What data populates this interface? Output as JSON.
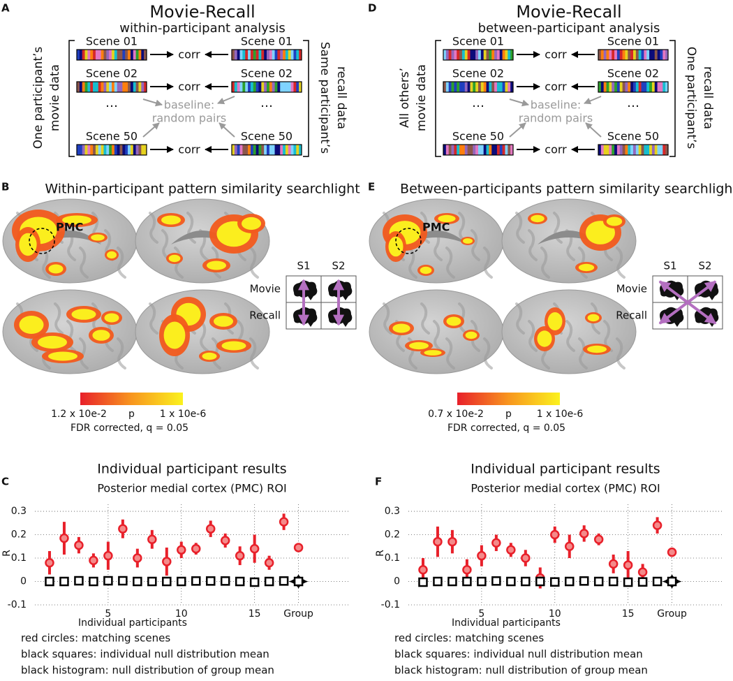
{
  "diagrams": [
    {
      "label": "A",
      "title": "Movie-Recall",
      "subtitle": "within-participant analysis",
      "left_caption": [
        "One participant’s",
        "movie data"
      ],
      "right_caption": [
        "Same participant’s",
        "recall data"
      ],
      "rows": [
        {
          "left": "Scene 01",
          "right": "Scene 01",
          "link": "corr"
        },
        {
          "left": "Scene 02",
          "right": "Scene 02",
          "link": "corr"
        },
        {
          "left": "…",
          "right": "…"
        },
        {
          "left": "Scene 50",
          "right": "Scene 50",
          "link": "corr"
        }
      ],
      "baseline": [
        "baseline:",
        "random pairs"
      ]
    },
    {
      "label": "D",
      "title": "Movie-Recall",
      "subtitle": "between-participant analysis",
      "left_caption": [
        "All others’",
        "movie data"
      ],
      "right_caption": [
        "One participant’s",
        "recall data"
      ],
      "rows": [
        {
          "left": "Scene 01",
          "right": "Scene 01",
          "link": "corr"
        },
        {
          "left": "Scene 02",
          "right": "Scene 02",
          "link": "corr"
        },
        {
          "left": "…",
          "right": "…"
        },
        {
          "left": "Scene 50",
          "right": "Scene 50",
          "link": "corr"
        }
      ],
      "baseline": [
        "baseline:",
        "random pairs"
      ]
    }
  ],
  "searchlights": [
    {
      "label": "B",
      "title": "Within-participant pattern similarity searchlight",
      "roi": "PMC",
      "matrix": {
        "columns": [
          "S1",
          "S2"
        ],
        "rows": [
          "Movie",
          "Recall"
        ],
        "arrows": "vertical"
      },
      "colorbar": {
        "min_label": "1.2 x 10e-2",
        "mid_label": "p",
        "max_label": "1 x 10e-6",
        "note": "FDR corrected, q = 0.05"
      }
    },
    {
      "label": "E",
      "title": "Between-participants pattern similarity searchlight",
      "roi": "PMC",
      "matrix": {
        "columns": [
          "S1",
          "S2"
        ],
        "rows": [
          "Movie",
          "Recall"
        ],
        "arrows": "crossed"
      },
      "colorbar": {
        "min_label": "0.7 x 10e-2",
        "mid_label": "p",
        "max_label": "1 x 10e-6",
        "note": "FDR corrected, q = 0.05"
      }
    }
  ],
  "chart_data": [
    {
      "type": "scatter",
      "label": "C",
      "title": "Individual participant results",
      "subtitle": "Posterior medial cortex (PMC) ROI",
      "ylabel": "R",
      "xlabel": "Individual participants",
      "notes": [
        "red circles: matching scenes",
        "black squares: individual null distribution mean",
        "black histogram: null distribution of group mean"
      ],
      "x": [
        1,
        2,
        3,
        4,
        5,
        6,
        7,
        8,
        9,
        10,
        11,
        12,
        13,
        14,
        15,
        16,
        17,
        18
      ],
      "xlim": [
        0,
        21.5
      ],
      "ylim": [
        -0.1,
        0.33
      ],
      "xticks": [
        5,
        10,
        15,
        {
          "value": 18,
          "label": "Group"
        }
      ],
      "yticks": [
        -0.1,
        0,
        0.1,
        0.2,
        0.3
      ],
      "grid": true,
      "series": [
        {
          "marker": "circle",
          "color": "#e8202a",
          "values": [
            0.08,
            0.185,
            0.155,
            0.09,
            0.11,
            0.225,
            0.1,
            0.18,
            0.085,
            0.135,
            0.14,
            0.225,
            0.175,
            0.11,
            0.14,
            0.08,
            0.255,
            0.145
          ],
          "errors": [
            0.05,
            0.07,
            0.035,
            0.03,
            0.06,
            0.04,
            0.04,
            0.04,
            0.06,
            0.035,
            0.025,
            0.035,
            0.03,
            0.04,
            0.06,
            0.03,
            0.035,
            0.01
          ]
        },
        {
          "marker": "square",
          "color": "#000000",
          "values": [
            0,
            0,
            0.003,
            0,
            0.003,
            0.003,
            0,
            0,
            0,
            0,
            0.002,
            0.002,
            0.002,
            0,
            -0.003,
            0,
            0.002,
            0
          ]
        }
      ]
    },
    {
      "type": "scatter",
      "label": "F",
      "title": "Individual participant results",
      "subtitle": "Posterior medial cortex (PMC) ROI",
      "ylabel": "R",
      "xlabel": "Individual participants",
      "notes": [
        "red circles: matching scenes",
        "black squares: individual null distribution mean",
        "black histogram: null distribution of group mean"
      ],
      "x": [
        1,
        2,
        3,
        4,
        5,
        6,
        7,
        8,
        9,
        10,
        11,
        12,
        13,
        14,
        15,
        16,
        17,
        18
      ],
      "xlim": [
        0,
        21.5
      ],
      "ylim": [
        -0.1,
        0.33
      ],
      "xticks": [
        5,
        10,
        15,
        {
          "value": 18,
          "label": "Group"
        }
      ],
      "yticks": [
        -0.1,
        0,
        0.1,
        0.2,
        0.3
      ],
      "grid": true,
      "series": [
        {
          "marker": "circle",
          "color": "#e8202a",
          "values": [
            0.05,
            0.17,
            0.17,
            0.05,
            0.11,
            0.165,
            0.135,
            0.1,
            0.015,
            0.2,
            0.15,
            0.205,
            0.18,
            0.075,
            0.07,
            0.04,
            0.24,
            0.125
          ],
          "errors": [
            0.05,
            0.065,
            0.05,
            0.045,
            0.045,
            0.035,
            0.03,
            0.035,
            0.045,
            0.035,
            0.05,
            0.035,
            0.025,
            0.04,
            0.06,
            0.035,
            0.035,
            0.015
          ]
        },
        {
          "marker": "square",
          "color": "#000000",
          "values": [
            -0.003,
            0,
            0,
            0,
            0,
            0.002,
            0,
            0,
            0,
            -0.002,
            0,
            0.002,
            0,
            0,
            -0.003,
            -0.002,
            0,
            0
          ]
        }
      ]
    }
  ]
}
